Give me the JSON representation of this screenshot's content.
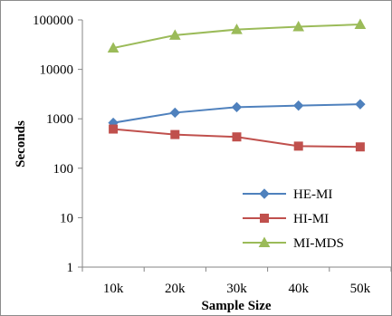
{
  "chart_data": {
    "type": "line",
    "title": "",
    "xlabel": "Sample Size",
    "ylabel": "Seconds",
    "yscale": "log",
    "ylim": [
      1,
      100000
    ],
    "yticks": [
      "1",
      "10",
      "100",
      "1000",
      "10000",
      "100000"
    ],
    "categories": [
      "10k",
      "20k",
      "30k",
      "40k",
      "50k"
    ],
    "grid": false,
    "legend_position": "bottom-right",
    "series": [
      {
        "name": "HE-MI",
        "color": "#4f81bd",
        "marker": "diamond",
        "values": [
          830,
          1330,
          1720,
          1850,
          1970
        ]
      },
      {
        "name": "HI-MI",
        "color": "#c0504d",
        "marker": "square",
        "values": [
          620,
          480,
          430,
          280,
          270
        ]
      },
      {
        "name": "MI-MDS",
        "color": "#9bbb59",
        "marker": "triangle",
        "values": [
          27000,
          49000,
          64000,
          73000,
          81000
        ]
      }
    ]
  }
}
